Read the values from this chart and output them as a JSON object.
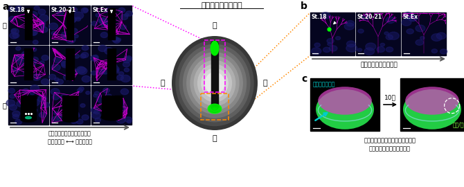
{
  "title_a": "a",
  "title_b": "b",
  "title_c": "c",
  "embryo_title": "ツメガエル胚の原口",
  "left_label": "左",
  "right_label": "右",
  "dorsal_label": "背",
  "ventral_label": "腹",
  "dorsal_row_label": "背",
  "ventral_row_label": "腹",
  "stage_labels": [
    "St.18",
    "St.20-21",
    "St.Ex"
  ],
  "arrow_text_a": "リン酸化ミオシンのシグナル\n背側は残存 ⟷ 腹側は消失",
  "arrow_text_b": "腹側の収縮が解消する",
  "arrow_text_c": "阻害薬で腹側の収縮を解消すると\n早期ステージでも開口する",
  "drug_text": "収縮阻害薬注入",
  "time_text": "10分",
  "cell_fluid_text": "細胞/体液",
  "bg_color": "#ffffff"
}
